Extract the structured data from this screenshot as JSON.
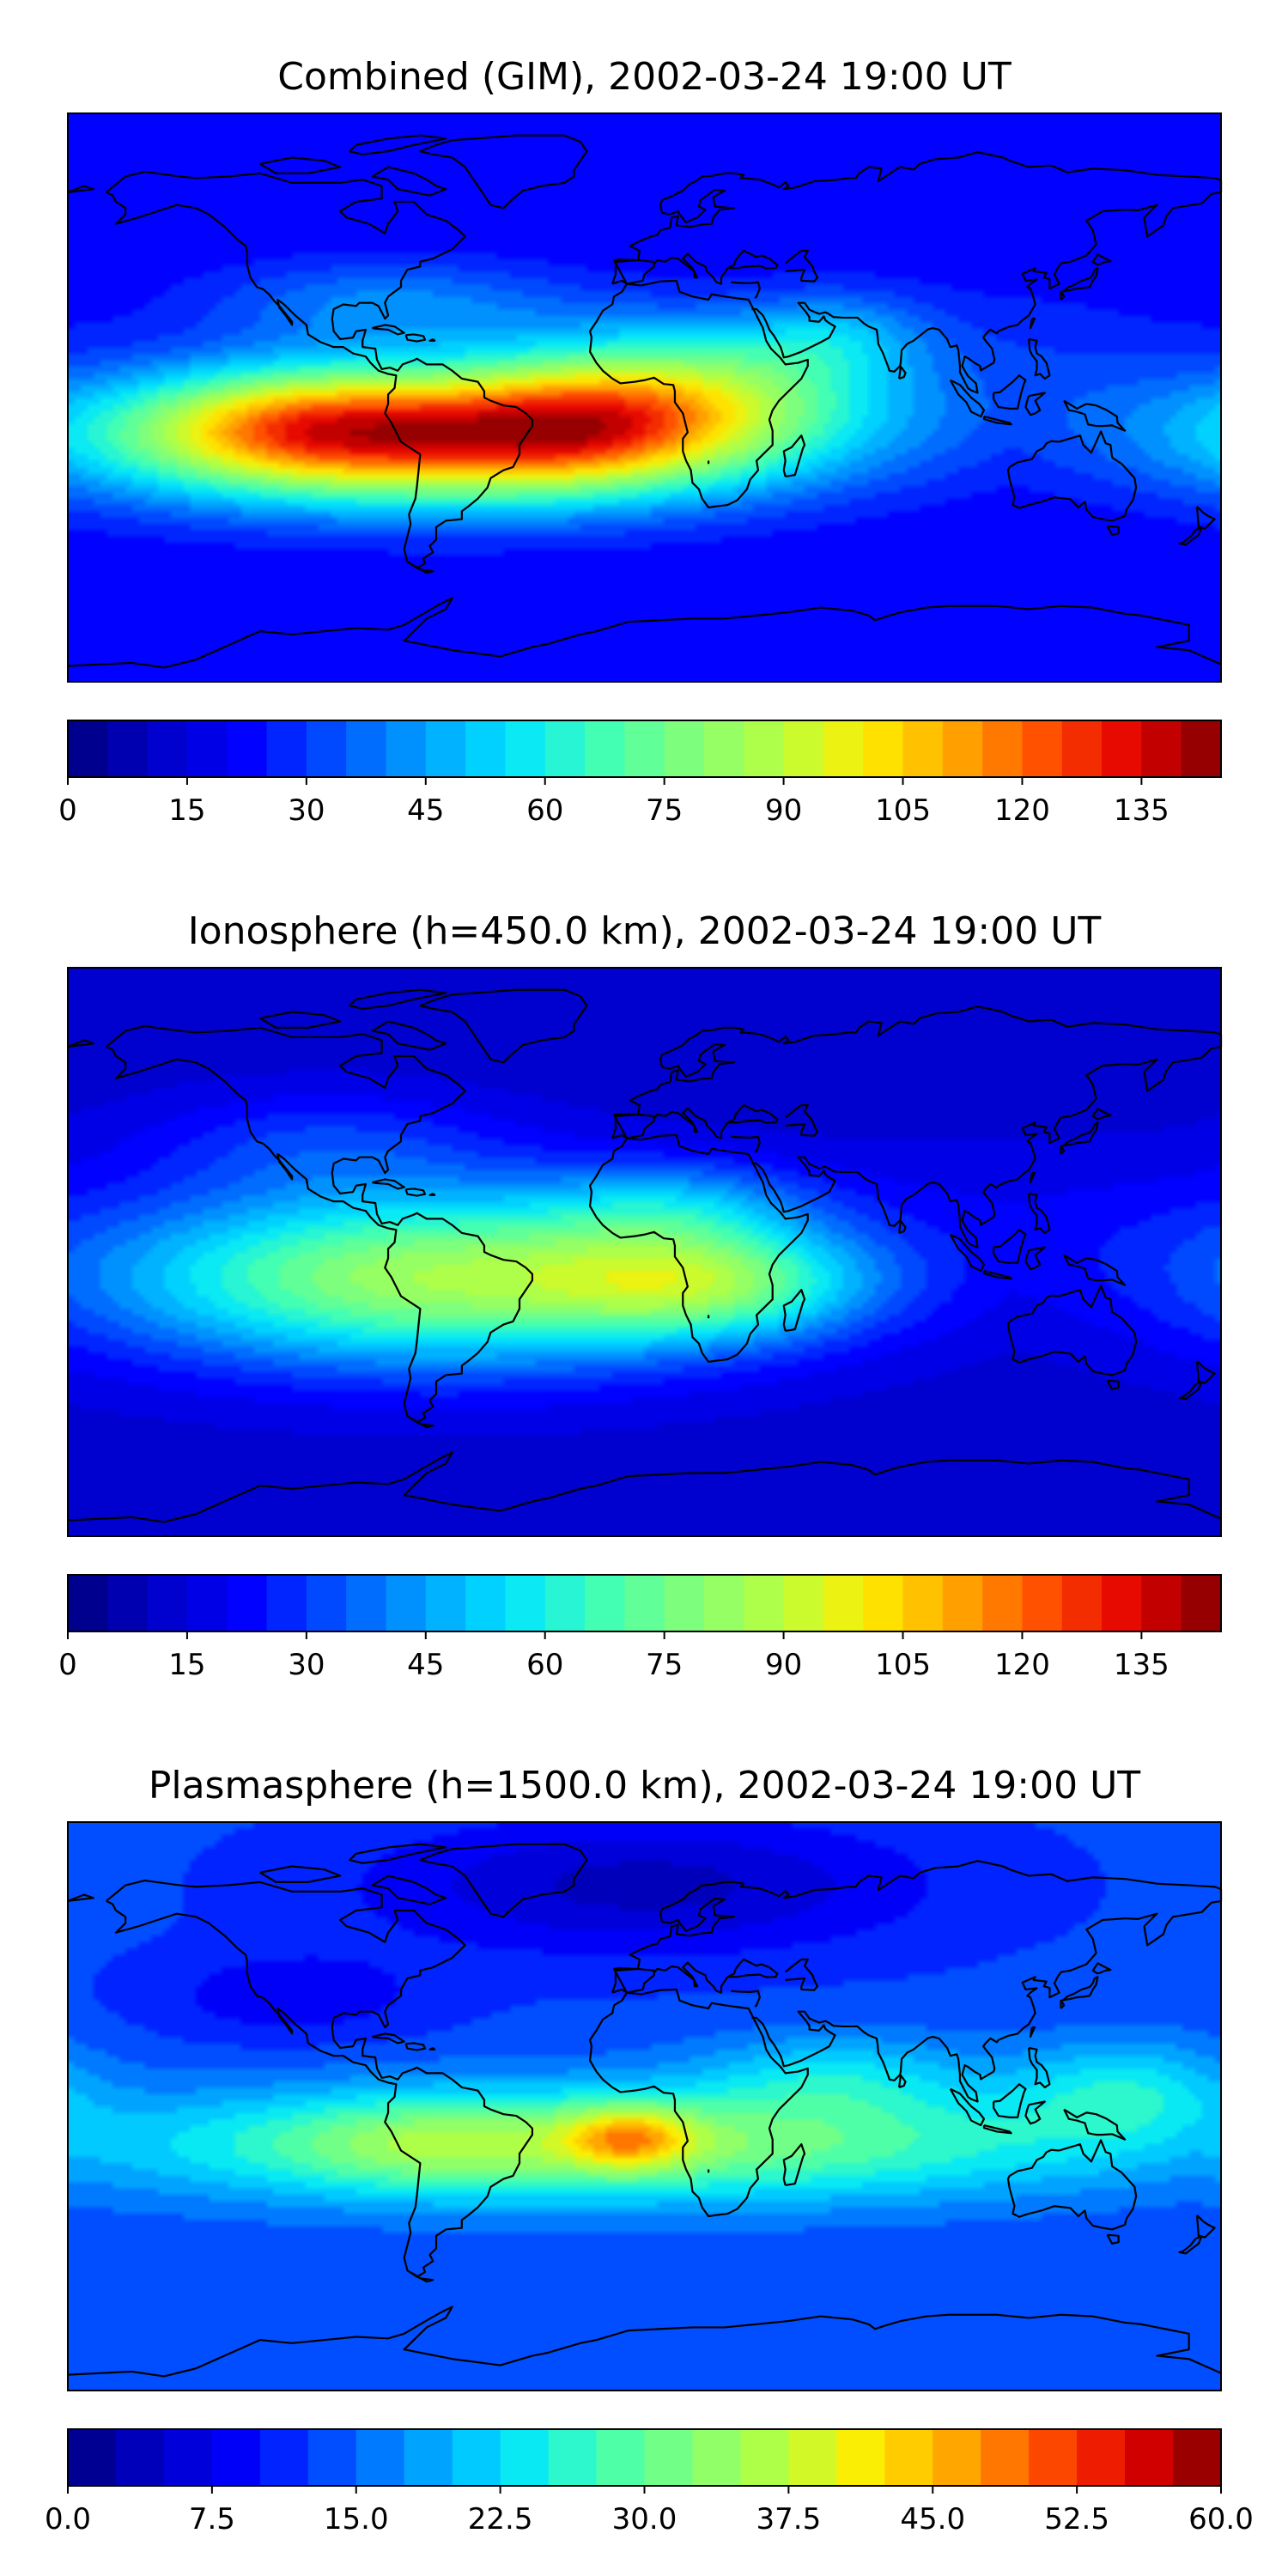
{
  "colors": {
    "jet": [
      "#00007f",
      "#0000c8",
      "#0000ff",
      "#0050ff",
      "#00a0ff",
      "#00e5ff",
      "#40ffb6",
      "#80ff7a",
      "#b6ff40",
      "#ffee00",
      "#ffa800",
      "#ff4f00",
      "#e40000",
      "#7f0000"
    ],
    "coast": "#000000"
  },
  "chart_data": [
    {
      "type": "heatmap",
      "title": "Combined (GIM), 2002-03-24 19:00 UT",
      "vmin": 0,
      "vmax": 145,
      "levels": 29,
      "colorbar_ticks": [
        "0",
        "15",
        "30",
        "45",
        "60",
        "75",
        "90",
        "105",
        "120",
        "135"
      ],
      "colorbar_tick_values": [
        0,
        15,
        30,
        45,
        60,
        75,
        90,
        105,
        120,
        135
      ],
      "extent": {
        "lon": [
          -180,
          180
        ],
        "lat": [
          -90,
          90
        ]
      },
      "field": {
        "base": 20,
        "blobs": [
          {
            "lon": -65,
            "lat": -12,
            "slon": 75,
            "slat": 15,
            "amp": 105
          },
          {
            "lon": -20,
            "lat": -10,
            "slon": 30,
            "slat": 13,
            "amp": 20
          },
          {
            "lon": 15,
            "lat": 5,
            "slon": 40,
            "slat": 15,
            "amp": 40
          },
          {
            "lon": -110,
            "lat": -8,
            "slon": 30,
            "slat": 12,
            "amp": 25
          },
          {
            "lon": 60,
            "lat": 20,
            "slon": 20,
            "slat": 10,
            "amp": 18
          },
          {
            "lon": -80,
            "lat": 30,
            "slon": 40,
            "slat": 10,
            "amp": 20
          },
          {
            "lon": 120,
            "lat": 10,
            "slon": 40,
            "slat": 20,
            "amp": 8
          }
        ]
      }
    },
    {
      "type": "heatmap",
      "title": "Ionosphere  (h=450.0 km), 2002-03-24 19:00 UT",
      "vmin": 0,
      "vmax": 145,
      "levels": 29,
      "colorbar_ticks": [
        "0",
        "15",
        "30",
        "45",
        "60",
        "75",
        "90",
        "105",
        "120",
        "135"
      ],
      "colorbar_tick_values": [
        0,
        15,
        30,
        45,
        60,
        75,
        90,
        105,
        120,
        135
      ],
      "extent": {
        "lon": [
          -180,
          180
        ],
        "lat": [
          -90,
          90
        ]
      },
      "field": {
        "base": 12,
        "blobs": [
          {
            "lon": -65,
            "lat": -8,
            "slon": 75,
            "slat": 20,
            "amp": 72
          },
          {
            "lon": 20,
            "lat": -10,
            "slon": 35,
            "slat": 12,
            "amp": 40
          },
          {
            "lon": 10,
            "lat": 15,
            "slon": 30,
            "slat": 10,
            "amp": 20
          },
          {
            "lon": -100,
            "lat": 35,
            "slon": 40,
            "slat": 12,
            "amp": 15
          },
          {
            "lon": 120,
            "lat": 10,
            "slon": 45,
            "slat": 20,
            "amp": 6
          }
        ]
      }
    },
    {
      "type": "heatmap",
      "title": "Plasmasphere (h=1500.0 km), 2002-03-24 19:00 UT",
      "vmin": 0,
      "vmax": 60,
      "levels": 24,
      "colorbar_ticks": [
        "0.0",
        "7.5",
        "15.0",
        "22.5",
        "30.0",
        "37.5",
        "45.0",
        "52.5",
        "60.0"
      ],
      "colorbar_tick_values": [
        0,
        7.5,
        15,
        22.5,
        30,
        37.5,
        45,
        52.5,
        60
      ],
      "extent": {
        "lon": [
          -180,
          180
        ],
        "lat": [
          -90,
          90
        ]
      },
      "field": {
        "base": 13,
        "blobs": [
          {
            "lon": -10,
            "lat": -12,
            "slon": 110,
            "slat": 13,
            "amp": 20
          },
          {
            "lon": -5,
            "lat": -10,
            "slon": 14,
            "slat": 7,
            "amp": 16
          },
          {
            "lon": -70,
            "lat": -12,
            "slon": 30,
            "slat": 10,
            "amp": 6
          },
          {
            "lon": 150,
            "lat": 5,
            "slon": 25,
            "slat": 12,
            "amp": 10
          },
          {
            "lon": 60,
            "lat": 10,
            "slon": 30,
            "slat": 10,
            "amp": 8
          },
          {
            "lon": 0,
            "lat": 70,
            "slon": 60,
            "slat": 15,
            "amp": -9
          },
          {
            "lon": -110,
            "lat": 35,
            "slon": 30,
            "slat": 10,
            "amp": -5
          }
        ]
      }
    }
  ]
}
